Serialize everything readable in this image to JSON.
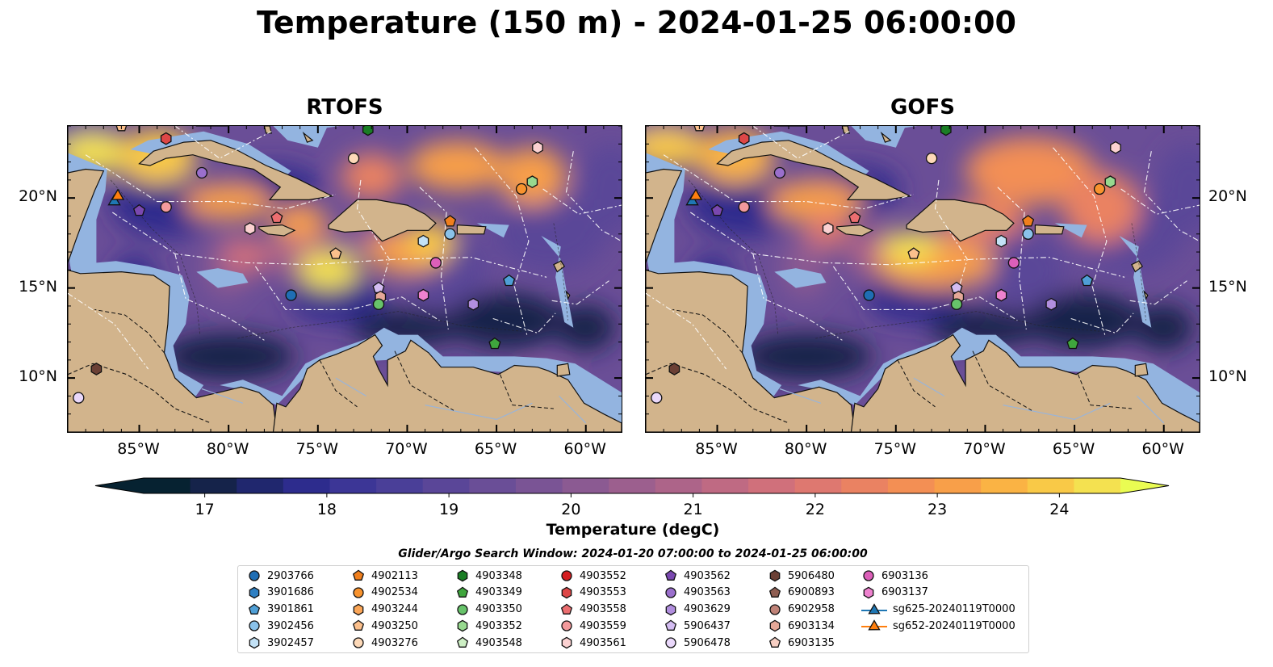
{
  "title": "Temperature (150 m) - 2024-01-25 06:00:00",
  "panels": [
    {
      "title": "RTOFS",
      "variant": "rtofs"
    },
    {
      "title": "GOFS",
      "variant": "gofs"
    }
  ],
  "map_extent": {
    "lon": [
      -89.0,
      -58.0
    ],
    "lat": [
      7.0,
      24.0
    ]
  },
  "x_ticks": [
    "85°W",
    "80°W",
    "75°W",
    "70°W",
    "65°W",
    "60°W"
  ],
  "x_tick_values": [
    -85,
    -80,
    -75,
    -70,
    -65,
    -60
  ],
  "y_ticks": [
    "20°N",
    "15°N",
    "10°N"
  ],
  "y_tick_values": [
    20,
    15,
    10
  ],
  "colorbar": {
    "label": "Temperature (degC)",
    "ticks": [
      "17",
      "18",
      "19",
      "20",
      "21",
      "22",
      "23",
      "24"
    ],
    "tick_values": [
      17,
      18,
      19,
      20,
      21,
      22,
      23,
      24
    ],
    "range": [
      16.5,
      24.5
    ],
    "colors": [
      "#062231",
      "#15234a",
      "#20276e",
      "#2d2c8d",
      "#3c3696",
      "#4a3f98",
      "#5a4698",
      "#6a4e97",
      "#7a5495",
      "#8b5a92",
      "#9c5f8e",
      "#ad6489",
      "#bf6a83",
      "#d0707b",
      "#de7870",
      "#ea8262",
      "#f38f54",
      "#f89f49",
      "#fab344",
      "#f9c947",
      "#f4e150"
    ],
    "extend_low": "#062231",
    "extend_high": "#eafc52"
  },
  "colors": {
    "land": "#d2b48c",
    "shelf": "#93b4e0",
    "deep": "#081c2a"
  },
  "search_window": "Glider/Argo Search Window: 2024-01-20 07:00:00 to 2024-01-25 06:00:00",
  "legend": {
    "columns": [
      [
        {
          "label": "2903766",
          "marker": "circle",
          "color": "#1f6eb4"
        },
        {
          "label": "3901686",
          "marker": "hexagon",
          "color": "#2f80c3"
        },
        {
          "label": "3901861",
          "marker": "pentagon",
          "color": "#4f9fd6"
        },
        {
          "label": "3902456",
          "marker": "circle",
          "color": "#8ac2ea"
        },
        {
          "label": "3902457",
          "marker": "hexagon",
          "color": "#c3e2f6"
        }
      ],
      [
        {
          "label": "4902113",
          "marker": "pentagon",
          "color": "#f07f1d"
        },
        {
          "label": "4902534",
          "marker": "circle",
          "color": "#f8932e"
        },
        {
          "label": "4903244",
          "marker": "hexagon",
          "color": "#fba657"
        },
        {
          "label": "4903250",
          "marker": "pentagon",
          "color": "#fcc08c"
        },
        {
          "label": "4903276",
          "marker": "circle",
          "color": "#fdd9b8"
        }
      ],
      [
        {
          "label": "4903348",
          "marker": "hexagon",
          "color": "#1a7d25"
        },
        {
          "label": "4903349",
          "marker": "pentagon",
          "color": "#3fa63d"
        },
        {
          "label": "4903350",
          "marker": "circle",
          "color": "#67c36a"
        },
        {
          "label": "4903352",
          "marker": "hexagon",
          "color": "#97d98f"
        },
        {
          "label": "4903548",
          "marker": "pentagon",
          "color": "#cdefc4"
        }
      ],
      [
        {
          "label": "4903552",
          "marker": "circle",
          "color": "#d41e21"
        },
        {
          "label": "4903553",
          "marker": "hexagon",
          "color": "#dd4747"
        },
        {
          "label": "4903558",
          "marker": "pentagon",
          "color": "#ec6e70"
        },
        {
          "label": "4903559",
          "marker": "circle",
          "color": "#f39a9c"
        },
        {
          "label": "4903561",
          "marker": "hexagon",
          "color": "#fbd1d1"
        }
      ],
      [
        {
          "label": "4903562",
          "marker": "pentagon",
          "color": "#7a48b0"
        },
        {
          "label": "4903563",
          "marker": "circle",
          "color": "#9a6fcc"
        },
        {
          "label": "4903629",
          "marker": "hexagon",
          "color": "#b18ede"
        },
        {
          "label": "5906437",
          "marker": "pentagon",
          "color": "#d4bdf2"
        },
        {
          "label": "5906478",
          "marker": "circle",
          "color": "#ead8fb"
        }
      ],
      [
        {
          "label": "5906480",
          "marker": "hexagon",
          "color": "#6b4035"
        },
        {
          "label": "6900893",
          "marker": "pentagon",
          "color": "#8f5e52"
        },
        {
          "label": "6902958",
          "marker": "circle",
          "color": "#c08378"
        },
        {
          "label": "6903134",
          "marker": "hexagon",
          "color": "#e5a898"
        },
        {
          "label": "6903135",
          "marker": "pentagon",
          "color": "#f7cfc3"
        }
      ],
      [
        {
          "label": "6903136",
          "marker": "circle",
          "color": "#dc5fb9"
        },
        {
          "label": "6903137",
          "marker": "hexagon",
          "color": "#ee82cf"
        },
        {
          "label": "sg625-20240119T0000",
          "marker": "triangle-line",
          "color": "#1f77b4"
        },
        {
          "label": "sg652-20240119T0000",
          "marker": "triangle-line",
          "color": "#ff7f0e"
        }
      ]
    ]
  },
  "markers": [
    {
      "lon": -86.4,
      "lat": 19.8,
      "marker": "triangle",
      "color": "#1f77b4"
    },
    {
      "lon": -86.2,
      "lat": 20.1,
      "marker": "triangle",
      "color": "#ff7f0e"
    },
    {
      "lon": -86.0,
      "lat": 24.0,
      "marker": "pentagon",
      "color": "#fcc08c"
    },
    {
      "lon": -85.0,
      "lat": 19.3,
      "marker": "pentagon",
      "color": "#7a48b0"
    },
    {
      "lon": -83.5,
      "lat": 23.3,
      "marker": "hexagon",
      "color": "#dd4747"
    },
    {
      "lon": -83.5,
      "lat": 19.5,
      "marker": "circle",
      "color": "#f39a9c"
    },
    {
      "lon": -81.5,
      "lat": 21.4,
      "marker": "circle",
      "color": "#9a6fcc"
    },
    {
      "lon": -78.8,
      "lat": 18.3,
      "marker": "hexagon",
      "color": "#fbd1d1"
    },
    {
      "lon": -77.3,
      "lat": 18.9,
      "marker": "pentagon",
      "color": "#ec6e70"
    },
    {
      "lon": -76.5,
      "lat": 14.6,
      "marker": "circle",
      "color": "#1f6eb4"
    },
    {
      "lon": -74.0,
      "lat": 16.9,
      "marker": "pentagon",
      "color": "#fcc08c"
    },
    {
      "lon": -73.0,
      "lat": 22.2,
      "marker": "circle",
      "color": "#fdd9b8"
    },
    {
      "lon": -72.2,
      "lat": 23.8,
      "marker": "hexagon",
      "color": "#1a7d25"
    },
    {
      "lon": -71.6,
      "lat": 15.0,
      "marker": "pentagon",
      "color": "#d4bdf2"
    },
    {
      "lon": -71.5,
      "lat": 14.5,
      "marker": "hexagon",
      "color": "#e5a898"
    },
    {
      "lon": -71.6,
      "lat": 14.1,
      "marker": "circle",
      "color": "#67c36a"
    },
    {
      "lon": -69.1,
      "lat": 14.6,
      "marker": "hexagon",
      "color": "#ee82cf"
    },
    {
      "lon": -69.1,
      "lat": 17.6,
      "marker": "hexagon",
      "color": "#c3e2f6"
    },
    {
      "lon": -68.4,
      "lat": 16.4,
      "marker": "circle",
      "color": "#dc5fb9"
    },
    {
      "lon": -67.6,
      "lat": 18.7,
      "marker": "pentagon",
      "color": "#f07f1d"
    },
    {
      "lon": -67.6,
      "lat": 18.0,
      "marker": "circle",
      "color": "#8ac2ea"
    },
    {
      "lon": -66.3,
      "lat": 14.1,
      "marker": "hexagon",
      "color": "#b18ede"
    },
    {
      "lon": -65.1,
      "lat": 11.9,
      "marker": "pentagon",
      "color": "#3fa63d"
    },
    {
      "lon": -64.3,
      "lat": 15.4,
      "marker": "pentagon",
      "color": "#4f9fd6"
    },
    {
      "lon": -63.6,
      "lat": 20.5,
      "marker": "circle",
      "color": "#f8932e"
    },
    {
      "lon": -63.0,
      "lat": 20.9,
      "marker": "hexagon",
      "color": "#97d98f"
    },
    {
      "lon": -62.7,
      "lat": 22.8,
      "marker": "hexagon",
      "color": "#fbd1d1"
    },
    {
      "lon": -87.4,
      "lat": 10.5,
      "marker": "hexagon",
      "color": "#6b4035"
    },
    {
      "lon": -88.4,
      "lat": 8.9,
      "marker": "circle",
      "color": "#ead8fb"
    }
  ]
}
